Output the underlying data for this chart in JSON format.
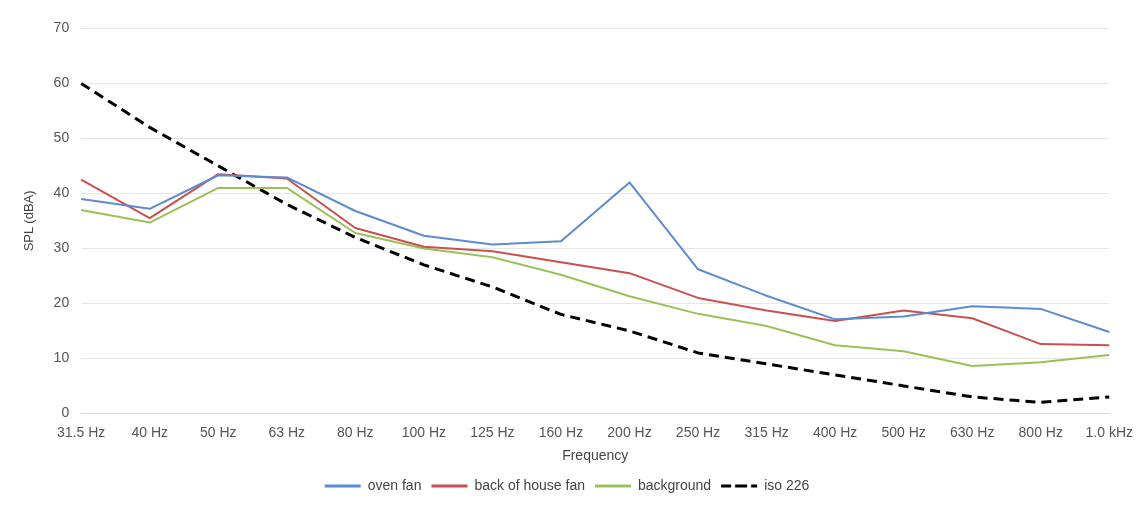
{
  "chart_data": {
    "type": "line",
    "xlabel": "Frequency",
    "ylabel": "SPL (dBA)",
    "categories": [
      "31.5 Hz",
      "40 Hz",
      "50 Hz",
      "63 Hz",
      "80 Hz",
      "100 Hz",
      "125 Hz",
      "160 Hz",
      "200 Hz",
      "250 Hz",
      "315 Hz",
      "400 Hz",
      "500 Hz",
      "630 Hz",
      "800 Hz",
      "1.0 kHz"
    ],
    "series": [
      {
        "name": "oven fan",
        "color": "#5b8bd0",
        "values": [
          39,
          37.2,
          43.3,
          42.9,
          36.8,
          32.3,
          30.7,
          31.3,
          42,
          26.2,
          21.4,
          17.1,
          17.6,
          19.5,
          19,
          14.8
        ]
      },
      {
        "name": "back of house fan",
        "color": "#c9504f",
        "values": [
          42.5,
          35.5,
          43.5,
          42.7,
          33.7,
          30.3,
          29.5,
          27.5,
          25.5,
          21,
          18.7,
          16.8,
          18.7,
          17.3,
          12.6,
          12.4
        ]
      },
      {
        "name": "background",
        "color": "#9bc05a",
        "values": [
          37,
          34.7,
          41,
          41,
          32.8,
          30,
          28.4,
          25.2,
          21.3,
          18.1,
          15.9,
          12.4,
          11.3,
          8.6,
          9.3,
          10.6
        ]
      },
      {
        "name": "iso 226",
        "color": "#000000",
        "line_style": "dashed",
        "values": [
          60,
          52,
          45,
          38,
          32,
          27,
          23,
          18,
          15,
          11,
          9,
          7,
          5,
          3,
          2,
          3
        ]
      }
    ],
    "ylim": [
      0,
      70
    ],
    "yticks": [
      0,
      10,
      20,
      30,
      40,
      50,
      60,
      70
    ],
    "grid": "y",
    "legend": "bottom",
    "marker": "none"
  }
}
